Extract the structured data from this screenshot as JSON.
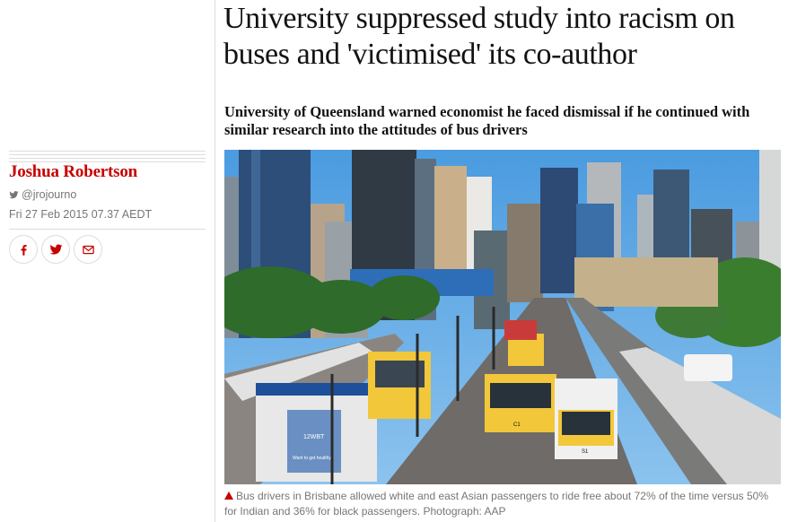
{
  "article": {
    "headline": "University suppressed study into racism on buses and 'victimised' its co-author",
    "standfirst": "University of Queensland warned economist he faced dismissal if he continued with similar research into the attitudes of bus drivers",
    "caption": "Bus drivers in Brisbane allowed white and east Asian passengers to ride free about 72% of the time versus 50% for Indian and 36% for black passengers. Photograph: AAP",
    "photo_ad_text": "12WBT",
    "photo_ad_tagline": "Want to get healthy?",
    "bus_route_1": "C1",
    "bus_route_2": "S1"
  },
  "byline": {
    "author": "Joshua Robertson",
    "twitter_handle": "@jrojourno",
    "date": "Fri 27 Feb 2015 07.37 AEDT"
  },
  "share": {
    "icons": [
      "facebook-icon",
      "twitter-icon",
      "email-icon"
    ]
  },
  "colors": {
    "accent": "#c70000",
    "meta_text": "#767676",
    "rule": "#dcdcdc"
  }
}
